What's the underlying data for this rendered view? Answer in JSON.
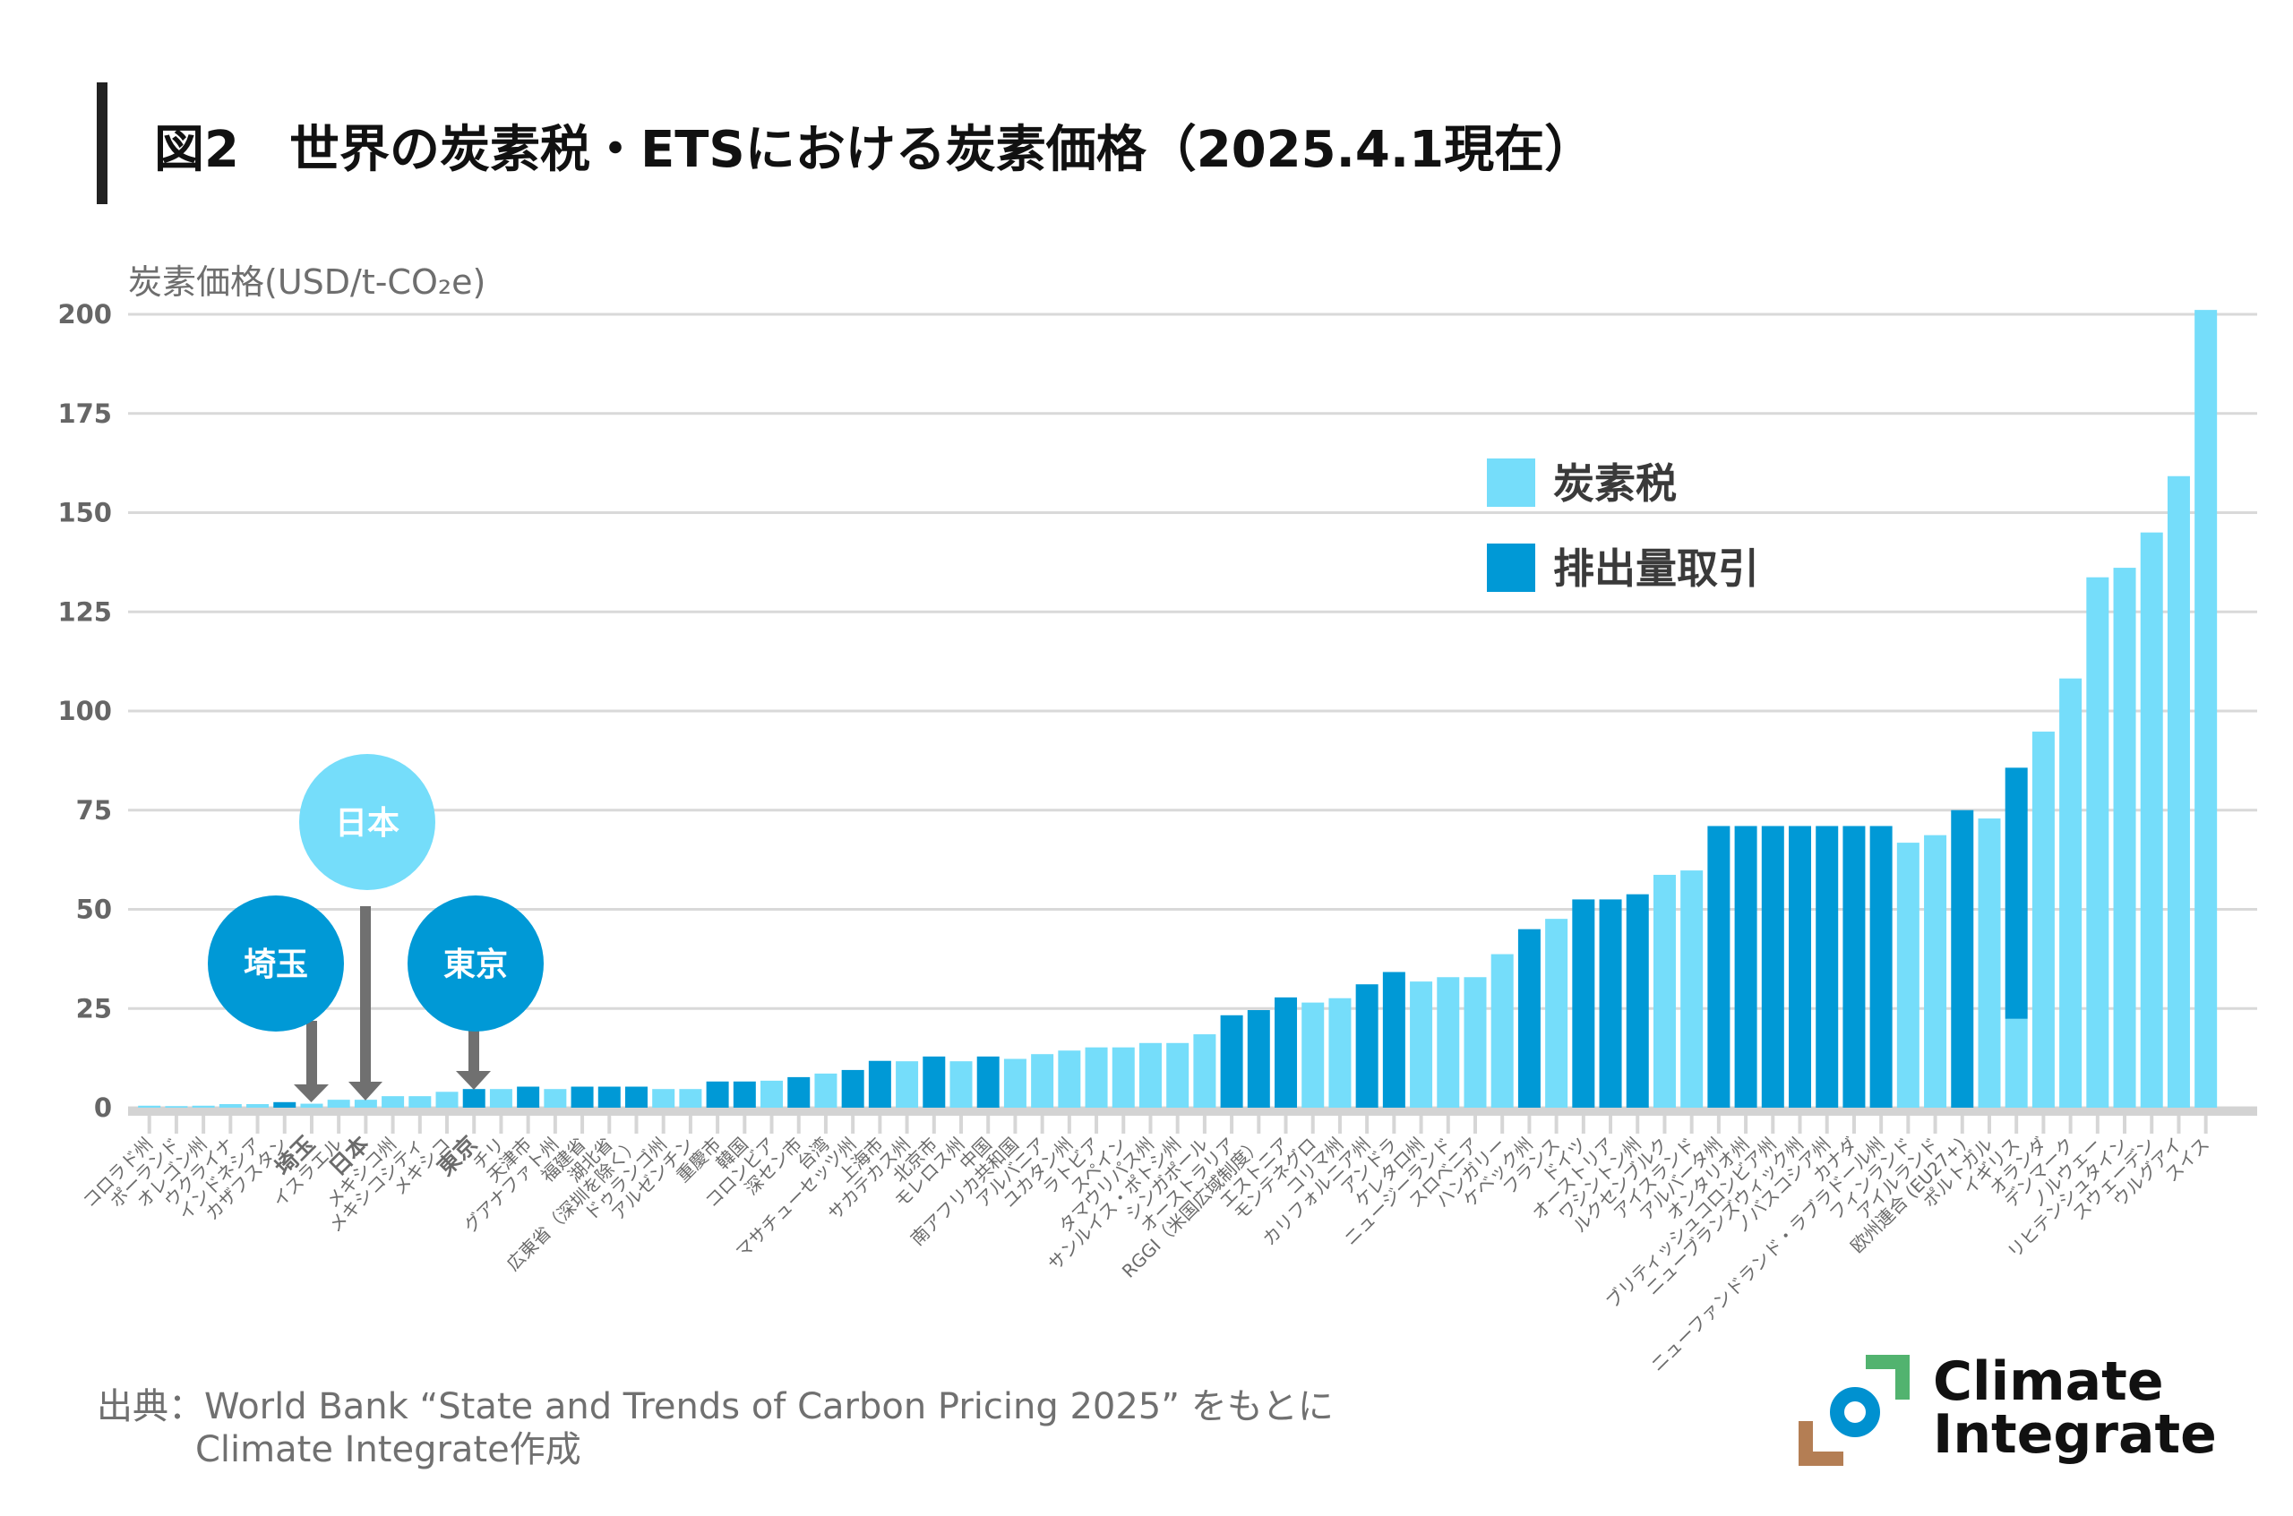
{
  "chart_data": {
    "type": "bar",
    "stacked": true,
    "title": "図2　世界の炭素税・ETSにおける炭素価格（2025.4.1現在）",
    "xlabel": "",
    "ylabel": "炭素価格(USD/t-CO₂e)",
    "ylim": [
      0,
      200
    ],
    "yticks": [
      0,
      25,
      50,
      75,
      100,
      125,
      150,
      175,
      200
    ],
    "grid": true,
    "legend": {
      "position": "top-right",
      "entries": [
        {
          "label": "炭素税",
          "color": "#75DDFA"
        },
        {
          "label": "排出量取引",
          "color": "#0099D6"
        }
      ]
    },
    "highlight_color": "#0099D6",
    "highlighted_categories": [
      "埼玉",
      "日本",
      "東京"
    ],
    "categories": [
      "コロラド州",
      "ポーランド",
      "オレゴン州",
      "ウクライナ",
      "インドネシア",
      "カザフスタン",
      "埼玉",
      "イスラエル",
      "日本",
      "メキシコ州",
      "メキシコシティ",
      "メキシコ",
      "東京",
      "チリ",
      "天津市",
      "グアナファト州",
      "福建省",
      "湖北省",
      "広東省（深圳を除く）",
      "ドゥランゴ州",
      "アルゼンチン",
      "重慶市",
      "韓国",
      "コロンビア",
      "深セン市",
      "台湾",
      "マサチューセッツ州",
      "上海市",
      "サカテカス州",
      "北京市",
      "モレロス州",
      "中国",
      "南アフリカ共和国",
      "アルバニア",
      "ユカタン州",
      "ラトビア",
      "スペイン",
      "タマウリパス州",
      "サンルイス・ポトシ州",
      "シンガポール",
      "オーストラリア",
      "RGGI（米国広域制度）",
      "エストニア",
      "モンテネグロ",
      "コリマ州",
      "カリフォルニア州",
      "アンドラ",
      "ケレタロ州",
      "ニュージーランド",
      "スロベニア",
      "ハンガリー",
      "ケベック州",
      "フランス",
      "ドイツ",
      "オーストリア",
      "ワシントン州",
      "ルクセンブルク",
      "アイスランド",
      "アルバータ州",
      "オンタリオ州",
      "ブリティッシュコロンビア州",
      "ニューブランズウィック州",
      "ノバスコシア州",
      "カナダ",
      "ニューファンドランド・ラブラドール州",
      "フィンランド",
      "アイルランド",
      "欧州連合 (EU27+)",
      "ポルトガル",
      "イギリス",
      "オランダ",
      "デンマーク",
      "ノルウェー",
      "リヒテンシュタイン",
      "スウェーデン",
      "ウルグアイ",
      "スイス"
    ],
    "series": [
      {
        "name": "炭素税",
        "color": "#75DDFA",
        "values": [
          0.5,
          0.4,
          0.5,
          0.9,
          0.9,
          null,
          1.0,
          2.0,
          2.0,
          2.9,
          2.9,
          4.0,
          null,
          4.7,
          null,
          4.7,
          null,
          null,
          null,
          4.7,
          4.7,
          null,
          null,
          6.8,
          null,
          8.6,
          null,
          null,
          11.7,
          null,
          11.7,
          null,
          12.3,
          13.5,
          14.4,
          15.2,
          15.2,
          16.3,
          16.3,
          18.5,
          null,
          null,
          null,
          26.5,
          27.6,
          null,
          null,
          31.8,
          32.9,
          32.9,
          38.7,
          null,
          47.6,
          null,
          null,
          null,
          58.7,
          59.8,
          null,
          null,
          null,
          null,
          null,
          null,
          null,
          66.8,
          68.7,
          null,
          72.9,
          22.4,
          94.8,
          108.2,
          133.7,
          136.1,
          145.0,
          159.2,
          201.1
        ]
      },
      {
        "name": "排出量取引",
        "color": "#0099D6",
        "values": [
          null,
          null,
          null,
          null,
          null,
          1.4,
          null,
          null,
          null,
          null,
          null,
          null,
          4.7,
          null,
          5.3,
          null,
          5.3,
          5.3,
          5.3,
          null,
          null,
          6.6,
          6.6,
          null,
          7.7,
          null,
          9.5,
          11.8,
          null,
          12.9,
          null,
          12.9,
          null,
          null,
          null,
          null,
          null,
          null,
          null,
          null,
          23.3,
          24.6,
          27.8,
          null,
          null,
          31.1,
          34.2,
          null,
          null,
          null,
          null,
          45.0,
          null,
          52.5,
          52.5,
          53.8,
          null,
          null,
          71.0,
          71.0,
          71.0,
          71.0,
          71.0,
          71.0,
          71.0,
          null,
          null,
          75.0,
          null,
          63.3,
          null,
          null,
          null,
          null,
          null,
          null,
          null
        ]
      }
    ],
    "annotations": [
      {
        "label": "埼玉",
        "target": "埼玉",
        "color": "#0099D6"
      },
      {
        "label": "日本",
        "target": "日本",
        "color": "#75DDFA"
      },
      {
        "label": "東京",
        "target": "東京",
        "color": "#0099D6"
      }
    ]
  },
  "source": {
    "line1": "出典：World Bank “State and Trends of Carbon Pricing 2025” をもとに",
    "line2": "Climate Integrate作成"
  },
  "logo": {
    "line1": "Climate",
    "line2": "Integrate",
    "colors": {
      "green": "#52B36F",
      "blue": "#0091D0",
      "brown": "#B47E54"
    }
  }
}
